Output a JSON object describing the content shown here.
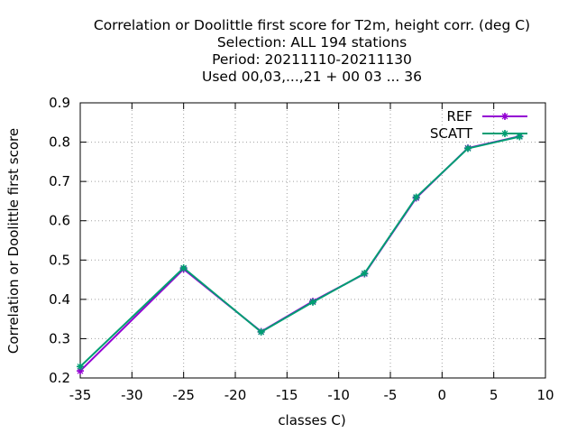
{
  "chart_data": {
    "type": "line",
    "title_lines": [
      "Correlation or Doolittle first score  for T2m, height corr. (deg C)",
      "Selection: ALL    194 stations",
      "Period: 20211110-20211130",
      "Used  00,03,...,21  + 00 03 ... 36"
    ],
    "xlabel": "classes C)",
    "ylabel": "Correlation or Doolittle first score",
    "xlim": [
      -35,
      10
    ],
    "ylim": [
      0.2,
      0.9
    ],
    "xticks": [
      -35,
      -30,
      -25,
      -20,
      -15,
      -10,
      -5,
      0,
      5,
      10
    ],
    "yticks": [
      0.2,
      0.3,
      0.4,
      0.5,
      0.6,
      0.7,
      0.8,
      0.9
    ],
    "xtick_labels": [
      "-35",
      "-30",
      "-25",
      "-20",
      "-15",
      "-10",
      "-5",
      "0",
      "5",
      "10"
    ],
    "ytick_labels": [
      "0.2",
      "0.3",
      "0.4",
      "0.5",
      "0.6",
      "0.7",
      "0.8",
      "0.9"
    ],
    "grid": true,
    "legend_position": "top-right",
    "series": [
      {
        "name": "REF",
        "color": "#9400d3",
        "x": [
          -35,
          -25,
          -17.5,
          -12.5,
          -7.5,
          -2.5,
          2.5,
          7.5
        ],
        "y": [
          0.218,
          0.477,
          0.318,
          0.395,
          0.465,
          0.658,
          0.785,
          0.815
        ]
      },
      {
        "name": "SCATT",
        "color": "#009e73",
        "x": [
          -35,
          -25,
          -17.5,
          -12.5,
          -7.5,
          -2.5,
          2.5,
          7.5
        ],
        "y": [
          0.229,
          0.48,
          0.317,
          0.393,
          0.466,
          0.66,
          0.784,
          0.814
        ]
      }
    ]
  }
}
